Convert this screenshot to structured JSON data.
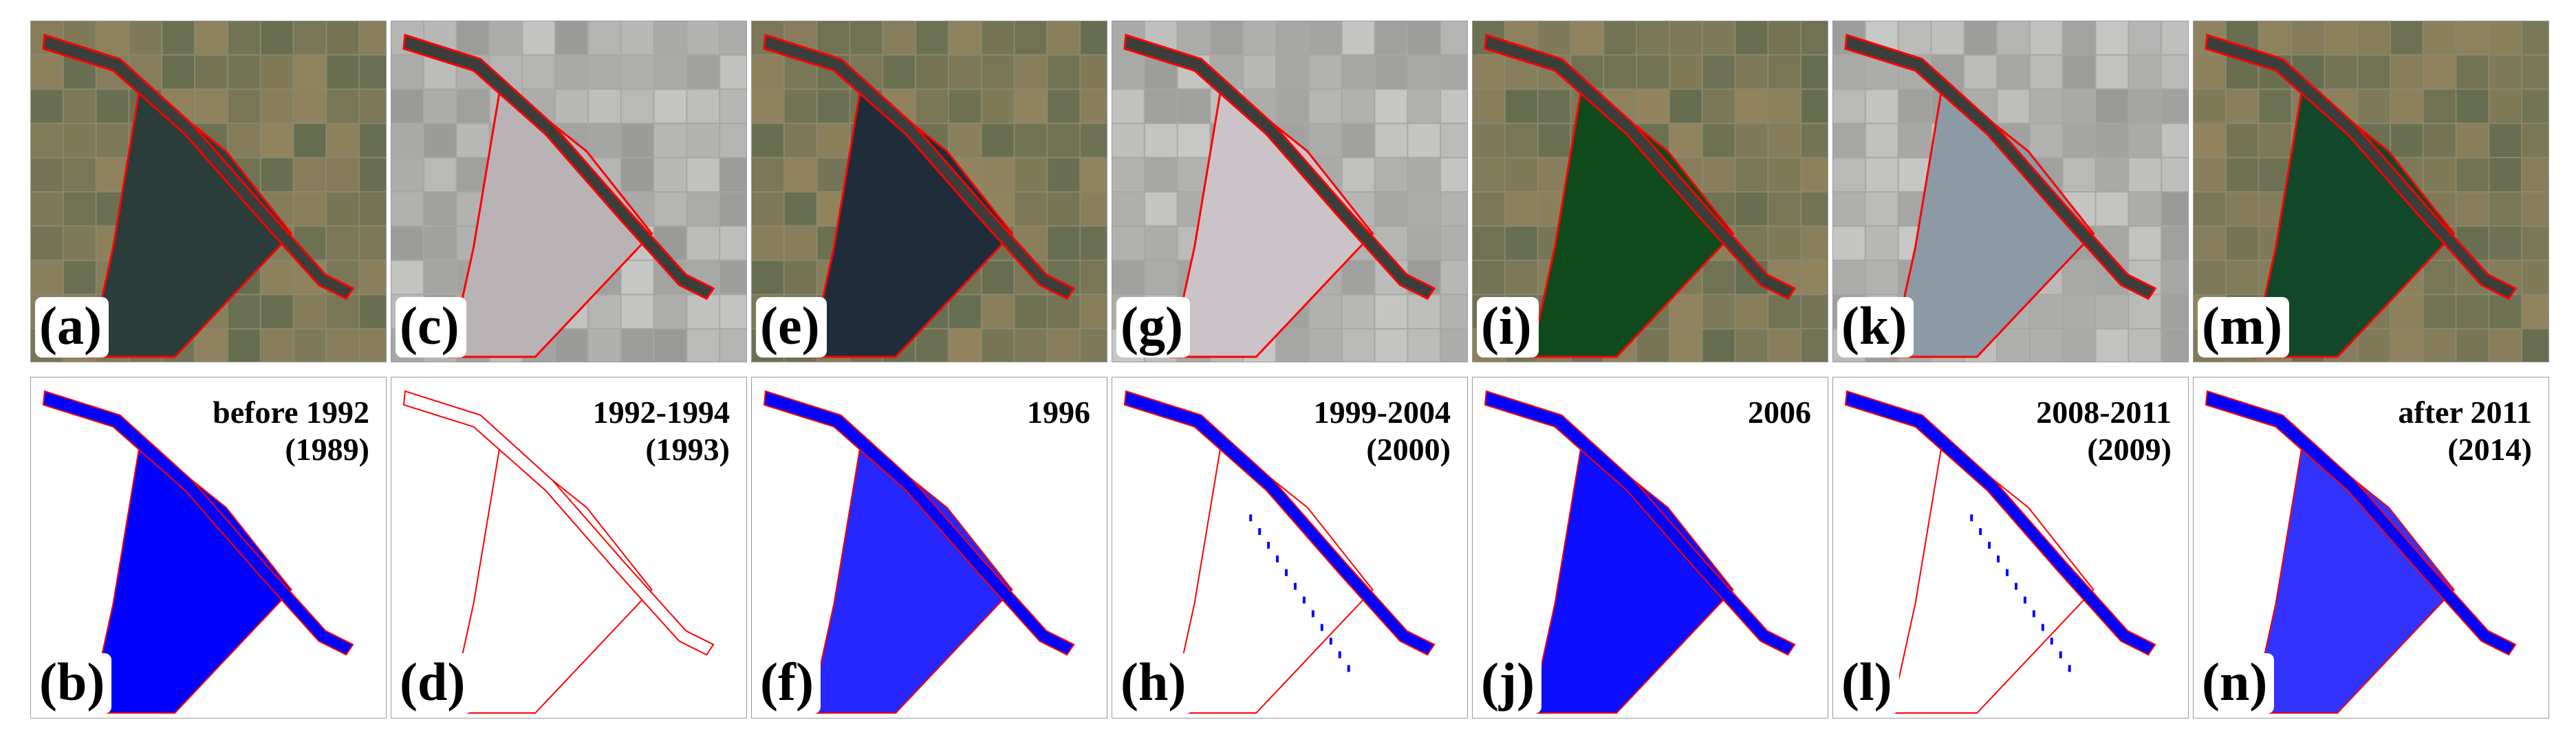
{
  "colors": {
    "water_fill": "#0000ff",
    "boundary": "#ff0000",
    "satellite_field": "#6f7460",
    "satellite_canal": "#3b3e3a"
  },
  "panels_top": [
    {
      "label": "(a)",
      "state": "water",
      "tone": "#2a3d3a"
    },
    {
      "label": "(c)",
      "state": "dry",
      "tone": "#b9b3b6"
    },
    {
      "label": "(e)",
      "state": "water",
      "tone": "#1f2d3a"
    },
    {
      "label": "(g)",
      "state": "dry",
      "tone": "#cbc3c8"
    },
    {
      "label": "(i)",
      "state": "water",
      "tone": "#0f4a1c"
    },
    {
      "label": "(k)",
      "state": "dry",
      "tone": "#8c9aa6"
    },
    {
      "label": "(m)",
      "state": "water",
      "tone": "#12482a"
    }
  ],
  "panels_bottom": [
    {
      "label": "(b)",
      "period": "before 1992",
      "year": "(1989)",
      "water": 1
    },
    {
      "label": "(d)",
      "period": "1992-1994",
      "year": "(1993)",
      "water": 0
    },
    {
      "label": "(f)",
      "period": "1996",
      "year": "",
      "water": 0.85
    },
    {
      "label": "(h)",
      "period": "1999-2004",
      "year": "(2000)",
      "water": 0.05
    },
    {
      "label": "(j)",
      "period": "2006",
      "year": "",
      "water": 0.95
    },
    {
      "label": "(l)",
      "period": "2008-2011",
      "year": "(2009)",
      "water": 0.1
    },
    {
      "label": "(n)",
      "period": "after 2011",
      "year": "(2014)",
      "water": 0.8
    }
  ]
}
